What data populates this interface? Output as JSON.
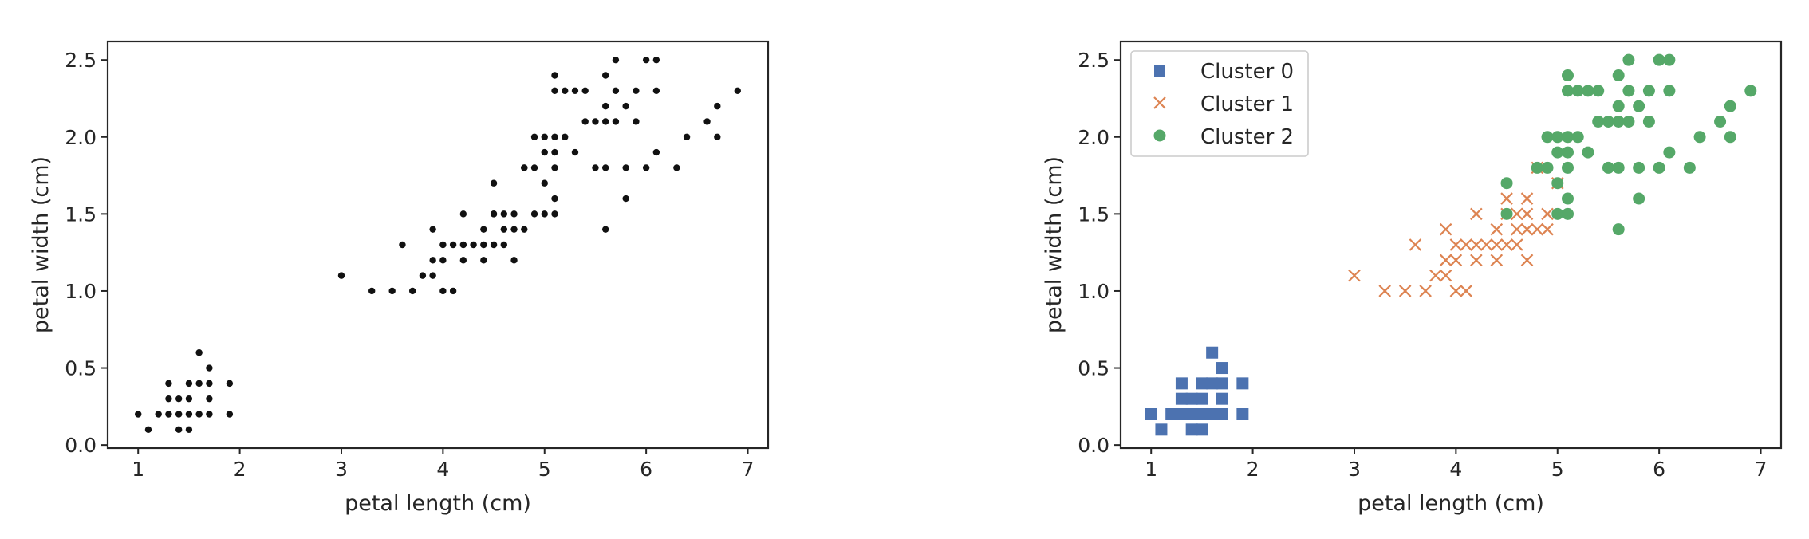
{
  "chart_data": [
    {
      "type": "scatter",
      "xlabel": "petal length (cm)",
      "ylabel": "petal width (cm)",
      "xlim": [
        0.7,
        7.2
      ],
      "ylim": [
        -0.02,
        2.62
      ],
      "xticks": [
        1,
        2,
        3,
        4,
        5,
        6,
        7
      ],
      "yticks": [
        0.0,
        0.5,
        1.0,
        1.5,
        2.0,
        2.5
      ],
      "xtick_labels": [
        "1",
        "2",
        "3",
        "4",
        "5",
        "6",
        "7"
      ],
      "ytick_labels": [
        "0.0",
        "0.5",
        "1.0",
        "1.5",
        "2.0",
        "2.5"
      ],
      "grid": false,
      "series": [
        {
          "color": "#111111",
          "marker": "dot",
          "points": [
            [
              1.0,
              0.2
            ],
            [
              1.1,
              0.1
            ],
            [
              1.2,
              0.2
            ],
            [
              1.3,
              0.2
            ],
            [
              1.3,
              0.3
            ],
            [
              1.3,
              0.4
            ],
            [
              1.4,
              0.1
            ],
            [
              1.4,
              0.2
            ],
            [
              1.4,
              0.3
            ],
            [
              1.5,
              0.1
            ],
            [
              1.5,
              0.2
            ],
            [
              1.5,
              0.3
            ],
            [
              1.5,
              0.4
            ],
            [
              1.6,
              0.2
            ],
            [
              1.6,
              0.4
            ],
            [
              1.6,
              0.6
            ],
            [
              1.7,
              0.2
            ],
            [
              1.7,
              0.3
            ],
            [
              1.7,
              0.4
            ],
            [
              1.7,
              0.5
            ],
            [
              1.9,
              0.2
            ],
            [
              1.9,
              0.4
            ],
            [
              3.0,
              1.1
            ],
            [
              3.3,
              1.0
            ],
            [
              3.5,
              1.0
            ],
            [
              3.6,
              1.3
            ],
            [
              3.7,
              1.0
            ],
            [
              3.8,
              1.1
            ],
            [
              3.9,
              1.1
            ],
            [
              3.9,
              1.2
            ],
            [
              3.9,
              1.4
            ],
            [
              4.0,
              1.0
            ],
            [
              4.0,
              1.2
            ],
            [
              4.0,
              1.3
            ],
            [
              4.1,
              1.0
            ],
            [
              4.1,
              1.3
            ],
            [
              4.2,
              1.2
            ],
            [
              4.2,
              1.3
            ],
            [
              4.2,
              1.5
            ],
            [
              4.3,
              1.3
            ],
            [
              4.4,
              1.2
            ],
            [
              4.4,
              1.3
            ],
            [
              4.4,
              1.4
            ],
            [
              4.5,
              1.3
            ],
            [
              4.5,
              1.5
            ],
            [
              4.6,
              1.3
            ],
            [
              4.6,
              1.4
            ],
            [
              4.6,
              1.5
            ],
            [
              4.7,
              1.2
            ],
            [
              4.7,
              1.4
            ],
            [
              4.7,
              1.5
            ],
            [
              4.8,
              1.4
            ],
            [
              4.8,
              1.8
            ],
            [
              4.9,
              1.5
            ],
            [
              5.0,
              1.7
            ],
            [
              4.5,
              1.7
            ],
            [
              4.9,
              1.8
            ],
            [
              4.5,
              1.5
            ],
            [
              4.8,
              1.8
            ],
            [
              4.9,
              2.0
            ],
            [
              5.0,
              1.5
            ],
            [
              5.0,
              1.9
            ],
            [
              5.0,
              2.0
            ],
            [
              5.1,
              1.5
            ],
            [
              5.1,
              1.6
            ],
            [
              5.1,
              1.8
            ],
            [
              5.1,
              1.9
            ],
            [
              5.1,
              2.0
            ],
            [
              5.1,
              2.3
            ],
            [
              5.1,
              2.4
            ],
            [
              5.2,
              2.0
            ],
            [
              5.2,
              2.3
            ],
            [
              5.3,
              1.9
            ],
            [
              5.3,
              2.3
            ],
            [
              5.4,
              2.1
            ],
            [
              5.4,
              2.3
            ],
            [
              5.5,
              1.8
            ],
            [
              5.5,
              2.1
            ],
            [
              5.6,
              1.4
            ],
            [
              5.6,
              1.8
            ],
            [
              5.6,
              2.1
            ],
            [
              5.6,
              2.2
            ],
            [
              5.6,
              2.4
            ],
            [
              5.7,
              2.1
            ],
            [
              5.7,
              2.3
            ],
            [
              5.7,
              2.5
            ],
            [
              5.8,
              1.6
            ],
            [
              5.8,
              1.8
            ],
            [
              5.8,
              2.2
            ],
            [
              5.9,
              2.1
            ],
            [
              5.9,
              2.3
            ],
            [
              6.0,
              1.8
            ],
            [
              6.0,
              2.5
            ],
            [
              6.1,
              1.9
            ],
            [
              6.1,
              2.3
            ],
            [
              6.1,
              2.5
            ],
            [
              6.3,
              1.8
            ],
            [
              6.4,
              2.0
            ],
            [
              6.6,
              2.1
            ],
            [
              6.7,
              2.0
            ],
            [
              6.7,
              2.2
            ],
            [
              6.9,
              2.3
            ]
          ]
        }
      ]
    },
    {
      "type": "scatter",
      "xlabel": "petal length (cm)",
      "ylabel": "petal width (cm)",
      "xlim": [
        0.7,
        7.2
      ],
      "ylim": [
        -0.02,
        2.62
      ],
      "xticks": [
        1,
        2,
        3,
        4,
        5,
        6,
        7
      ],
      "yticks": [
        0.0,
        0.5,
        1.0,
        1.5,
        2.0,
        2.5
      ],
      "xtick_labels": [
        "1",
        "2",
        "3",
        "4",
        "5",
        "6",
        "7"
      ],
      "ytick_labels": [
        "0.0",
        "0.5",
        "1.0",
        "1.5",
        "2.0",
        "2.5"
      ],
      "grid": false,
      "legend_position": "top-left",
      "series": [
        {
          "name": "Cluster 0",
          "color": "#4c72b0",
          "marker": "square",
          "points": [
            [
              1.0,
              0.2
            ],
            [
              1.1,
              0.1
            ],
            [
              1.2,
              0.2
            ],
            [
              1.3,
              0.2
            ],
            [
              1.3,
              0.3
            ],
            [
              1.3,
              0.4
            ],
            [
              1.4,
              0.1
            ],
            [
              1.4,
              0.2
            ],
            [
              1.4,
              0.3
            ],
            [
              1.5,
              0.1
            ],
            [
              1.5,
              0.2
            ],
            [
              1.5,
              0.3
            ],
            [
              1.5,
              0.4
            ],
            [
              1.6,
              0.2
            ],
            [
              1.6,
              0.4
            ],
            [
              1.6,
              0.6
            ],
            [
              1.7,
              0.2
            ],
            [
              1.7,
              0.3
            ],
            [
              1.7,
              0.4
            ],
            [
              1.7,
              0.5
            ],
            [
              1.9,
              0.2
            ],
            [
              1.9,
              0.4
            ]
          ]
        },
        {
          "name": "Cluster 1",
          "color": "#dd8452",
          "marker": "x",
          "points": [
            [
              3.0,
              1.1
            ],
            [
              3.3,
              1.0
            ],
            [
              3.5,
              1.0
            ],
            [
              3.6,
              1.3
            ],
            [
              3.7,
              1.0
            ],
            [
              3.8,
              1.1
            ],
            [
              3.9,
              1.1
            ],
            [
              3.9,
              1.2
            ],
            [
              3.9,
              1.4
            ],
            [
              4.0,
              1.0
            ],
            [
              4.0,
              1.2
            ],
            [
              4.0,
              1.3
            ],
            [
              4.1,
              1.0
            ],
            [
              4.1,
              1.3
            ],
            [
              4.2,
              1.2
            ],
            [
              4.2,
              1.3
            ],
            [
              4.2,
              1.5
            ],
            [
              4.3,
              1.3
            ],
            [
              4.4,
              1.2
            ],
            [
              4.4,
              1.3
            ],
            [
              4.4,
              1.4
            ],
            [
              4.5,
              1.3
            ],
            [
              4.5,
              1.5
            ],
            [
              4.6,
              1.3
            ],
            [
              4.6,
              1.4
            ],
            [
              4.6,
              1.5
            ],
            [
              4.7,
              1.2
            ],
            [
              4.7,
              1.4
            ],
            [
              4.7,
              1.5
            ],
            [
              4.8,
              1.4
            ],
            [
              4.8,
              1.8
            ],
            [
              4.9,
              1.5
            ],
            [
              5.0,
              1.7
            ],
            [
              4.5,
              1.6
            ],
            [
              4.7,
              1.6
            ],
            [
              4.9,
              1.4
            ]
          ]
        },
        {
          "name": "Cluster 2",
          "color": "#55a868",
          "marker": "circle",
          "points": [
            [
              4.5,
              1.5
            ],
            [
              4.5,
              1.7
            ],
            [
              4.8,
              1.8
            ],
            [
              4.9,
              1.8
            ],
            [
              4.9,
              2.0
            ],
            [
              5.0,
              1.5
            ],
            [
              5.0,
              1.7
            ],
            [
              5.0,
              1.9
            ],
            [
              5.0,
              2.0
            ],
            [
              5.1,
              1.5
            ],
            [
              5.1,
              1.6
            ],
            [
              5.1,
              1.8
            ],
            [
              5.1,
              1.9
            ],
            [
              5.1,
              2.0
            ],
            [
              5.1,
              2.3
            ],
            [
              5.1,
              2.4
            ],
            [
              5.2,
              2.0
            ],
            [
              5.2,
              2.3
            ],
            [
              5.3,
              1.9
            ],
            [
              5.3,
              2.3
            ],
            [
              5.4,
              2.1
            ],
            [
              5.4,
              2.3
            ],
            [
              5.5,
              1.8
            ],
            [
              5.5,
              2.1
            ],
            [
              5.6,
              1.4
            ],
            [
              5.6,
              1.8
            ],
            [
              5.6,
              2.1
            ],
            [
              5.6,
              2.2
            ],
            [
              5.6,
              2.4
            ],
            [
              5.7,
              2.1
            ],
            [
              5.7,
              2.3
            ],
            [
              5.7,
              2.5
            ],
            [
              5.8,
              1.6
            ],
            [
              5.8,
              1.8
            ],
            [
              5.8,
              2.2
            ],
            [
              5.9,
              2.1
            ],
            [
              5.9,
              2.3
            ],
            [
              6.0,
              1.8
            ],
            [
              6.0,
              2.5
            ],
            [
              6.1,
              1.9
            ],
            [
              6.1,
              2.3
            ],
            [
              6.1,
              2.5
            ],
            [
              6.3,
              1.8
            ],
            [
              6.4,
              2.0
            ],
            [
              6.6,
              2.1
            ],
            [
              6.7,
              2.0
            ],
            [
              6.7,
              2.2
            ],
            [
              6.9,
              2.3
            ]
          ]
        }
      ]
    }
  ]
}
